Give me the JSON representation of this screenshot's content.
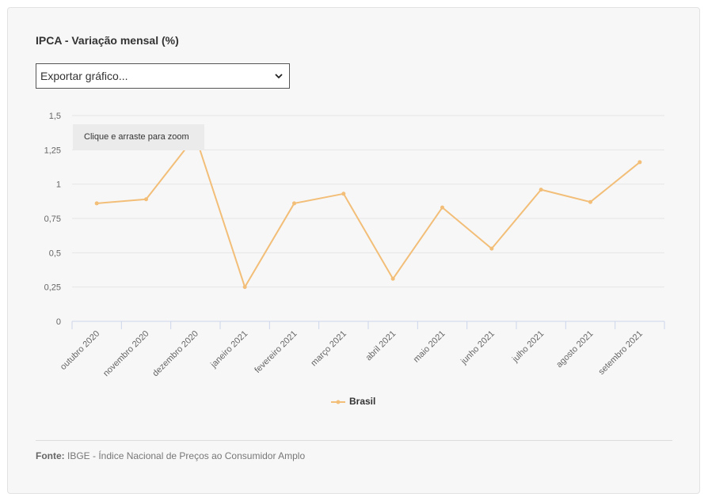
{
  "title": "IPCA - Variação mensal (%)",
  "export": {
    "label": "Exportar gráfico..."
  },
  "tooltip": "Clique e arraste para zoom",
  "source": {
    "label": "Fonte:",
    "text": "IBGE - Índice Nacional de Preços ao Consumidor Amplo"
  },
  "colors": {
    "series": "#f2be78",
    "grid": "#e6e6e6",
    "axis": "#ccd6eb"
  },
  "chart_data": {
    "type": "line",
    "title": "IPCA - Variação mensal (%)",
    "categories": [
      "outubro 2020",
      "novembro 2020",
      "dezembro 2020",
      "janeiro 2021",
      "fevereiro 2021",
      "março 2021",
      "abril 2021",
      "maio 2021",
      "junho 2021",
      "julho 2021",
      "agosto 2021",
      "setembro 2021"
    ],
    "series": [
      {
        "name": "Brasil",
        "values": [
          0.86,
          0.89,
          1.35,
          0.25,
          0.86,
          0.93,
          0.31,
          0.83,
          0.53,
          0.96,
          0.87,
          1.16
        ]
      }
    ],
    "y_ticks": [
      0,
      0.25,
      0.5,
      0.75,
      1,
      1.25,
      1.5
    ],
    "y_tick_labels": [
      "0",
      "0,25",
      "0,5",
      "0,75",
      "1",
      "1,25",
      "1,5"
    ],
    "ylim": [
      0,
      1.5
    ],
    "grid": true,
    "legend": "bottom-center"
  }
}
